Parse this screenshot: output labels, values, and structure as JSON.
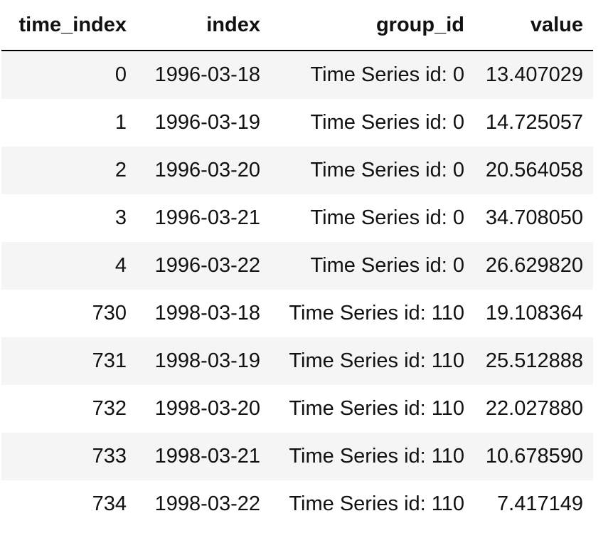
{
  "table": {
    "headers": [
      "time_index",
      "index",
      "group_id",
      "value"
    ],
    "rows": [
      [
        "0",
        "1996-03-18",
        "Time Series id: 0",
        "13.407029"
      ],
      [
        "1",
        "1996-03-19",
        "Time Series id: 0",
        "14.725057"
      ],
      [
        "2",
        "1996-03-20",
        "Time Series id: 0",
        "20.564058"
      ],
      [
        "3",
        "1996-03-21",
        "Time Series id: 0",
        "34.708050"
      ],
      [
        "4",
        "1996-03-22",
        "Time Series id: 0",
        "26.629820"
      ],
      [
        "730",
        "1998-03-18",
        "Time Series id: 110",
        "19.108364"
      ],
      [
        "731",
        "1998-03-19",
        "Time Series id: 110",
        "25.512888"
      ],
      [
        "732",
        "1998-03-20",
        "Time Series id: 110",
        "22.027880"
      ],
      [
        "733",
        "1998-03-21",
        "Time Series id: 110",
        "10.678590"
      ],
      [
        "734",
        "1998-03-22",
        "Time Series id: 110",
        "7.417149"
      ]
    ]
  },
  "colors": {
    "stripe": "#f5f5f5",
    "rule": "#000000",
    "text": "#111111"
  }
}
